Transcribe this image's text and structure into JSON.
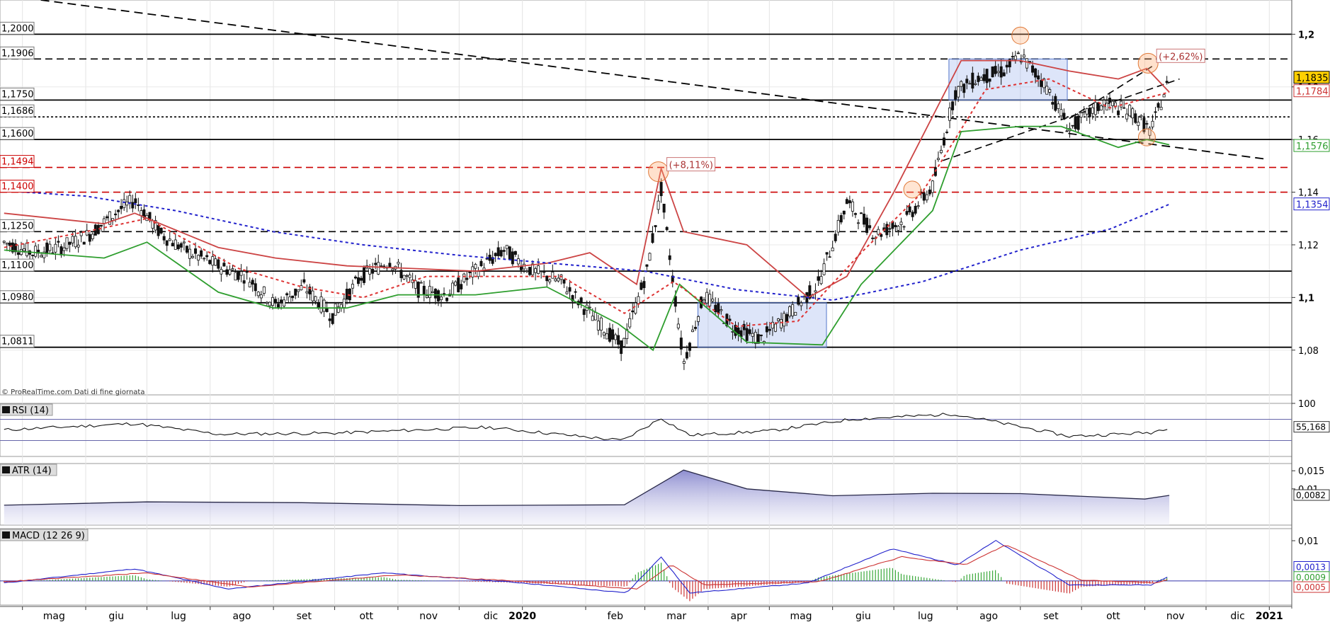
{
  "credit": "© ProRealTime.com  Dati di fine giornata",
  "chart_data": [
    {
      "type": "line",
      "panel": "price",
      "ylim": [
        1.063,
        1.213
      ],
      "grid": true,
      "right_ticks": [
        "1,2",
        "1,18",
        "1,16",
        "1,14",
        "1,12",
        "1,1",
        "1,08"
      ],
      "right_tick_values": [
        1.2,
        1.18,
        1.16,
        1.14,
        1.12,
        1.1,
        1.08
      ],
      "levels": [
        {
          "label": "1,2000",
          "value": 1.2,
          "style": "solid",
          "color": "#000000"
        },
        {
          "label": "1,1906",
          "value": 1.1906,
          "style": "dash",
          "color": "#000000"
        },
        {
          "label": "1,1750",
          "value": 1.175,
          "style": "solid",
          "color": "#000000"
        },
        {
          "label": "1,1686",
          "value": 1.1686,
          "style": "dot",
          "color": "#000000"
        },
        {
          "label": "1,1600",
          "value": 1.16,
          "style": "solid",
          "color": "#000000"
        },
        {
          "label": "1,1494",
          "value": 1.1494,
          "style": "dash",
          "color": "#cc0000"
        },
        {
          "label": "1,1400",
          "value": 1.14,
          "style": "dash",
          "color": "#cc0000"
        },
        {
          "label": "1,1250",
          "value": 1.125,
          "style": "dash",
          "color": "#000000"
        },
        {
          "label": "1,1100",
          "value": 1.11,
          "style": "solid",
          "color": "#000000"
        },
        {
          "label": "1,0980",
          "value": 1.098,
          "style": "solid",
          "color": "#000000"
        },
        {
          "label": "1,0811",
          "value": 1.0811,
          "style": "solid",
          "color": "#000000"
        }
      ],
      "price_tags": [
        {
          "label": "1,1835",
          "value": 1.1835,
          "color": "#000000",
          "bg": "#ffd000"
        },
        {
          "label": "1,1784",
          "value": 1.1784,
          "color": "#cc3333",
          "bg": "#ffffff"
        },
        {
          "label": "1,1576",
          "value": 1.1576,
          "color": "#2e9e2e",
          "bg": "#ffffff"
        },
        {
          "label": "1,1354",
          "value": 1.1354,
          "color": "#2222cc",
          "bg": "#ffffff"
        }
      ],
      "annotations": [
        {
          "text": "(+8,11%)",
          "x": "2020-03-09",
          "y": 1.1494
        },
        {
          "text": "(+2,62%)",
          "x": "2020-11-04",
          "y": 1.1906
        }
      ],
      "x_ticks": [
        "mag",
        "giu",
        "lug",
        "ago",
        "set",
        "ott",
        "nov",
        "dic",
        "2020",
        "feb",
        "mar",
        "apr",
        "mag",
        "giu",
        "lug",
        "ago",
        "set",
        "ott",
        "nov",
        "dic",
        "2021"
      ],
      "x_range": [
        "2019-04-20",
        "2021-01-12"
      ],
      "x_tick_dates": [
        "2019-05-01",
        "2019-06-01",
        "2019-07-01",
        "2019-08-01",
        "2019-09-01",
        "2019-10-01",
        "2019-11-01",
        "2019-12-01",
        "2020-01-01",
        "2020-02-01",
        "2020-03-01",
        "2020-04-01",
        "2020-05-01",
        "2020-06-01",
        "2020-07-01",
        "2020-08-01",
        "2020-09-01",
        "2020-10-01",
        "2020-11-01",
        "2020-12-01",
        "2021-01-01"
      ],
      "series": [
        {
          "color": "#111111",
          "style": "candles",
          "x": [
            "2019-04-22",
            "2019-05-06",
            "2019-05-20",
            "2019-06-03",
            "2019-06-17",
            "2019-06-25",
            "2019-07-08",
            "2019-07-22",
            "2019-08-05",
            "2019-08-19",
            "2019-09-02",
            "2019-09-16",
            "2019-09-30",
            "2019-10-14",
            "2019-10-28",
            "2019-11-11",
            "2019-11-25",
            "2019-12-09",
            "2019-12-23",
            "2020-01-06",
            "2020-01-20",
            "2020-02-03",
            "2020-02-19",
            "2020-03-02",
            "2020-03-09",
            "2020-03-20",
            "2020-03-30",
            "2020-04-13",
            "2020-04-27",
            "2020-05-11",
            "2020-05-25",
            "2020-06-08",
            "2020-06-22",
            "2020-07-06",
            "2020-07-20",
            "2020-07-31",
            "2020-08-10",
            "2020-08-24",
            "2020-09-01",
            "2020-09-14",
            "2020-09-25",
            "2020-10-12",
            "2020-10-26",
            "2020-11-04",
            "2020-11-13"
          ],
          "values": [
            1.121,
            1.117,
            1.119,
            1.124,
            1.133,
            1.137,
            1.124,
            1.117,
            1.112,
            1.108,
            1.097,
            1.104,
            1.093,
            1.108,
            1.114,
            1.103,
            1.101,
            1.11,
            1.118,
            1.11,
            1.106,
            1.094,
            1.081,
            1.11,
            1.141,
            1.075,
            1.101,
            1.089,
            1.084,
            1.094,
            1.105,
            1.136,
            1.124,
            1.129,
            1.142,
            1.178,
            1.183,
            1.186,
            1.192,
            1.18,
            1.164,
            1.174,
            1.17,
            1.163,
            1.183
          ]
        },
        {
          "color": "#2e9e2e",
          "style": "solid",
          "x": [
            "2019-04-22",
            "2019-06-10",
            "2019-07-01",
            "2019-08-05",
            "2019-09-01",
            "2019-10-07",
            "2019-11-01",
            "2019-12-09",
            "2020-01-13",
            "2020-02-17",
            "2020-03-05",
            "2020-03-18",
            "2020-04-20",
            "2020-05-27",
            "2020-06-15",
            "2020-07-20",
            "2020-08-03",
            "2020-09-01",
            "2020-09-21",
            "2020-10-19",
            "2020-11-02",
            "2020-11-13"
          ],
          "values": [
            1.118,
            1.115,
            1.121,
            1.102,
            1.096,
            1.096,
            1.101,
            1.101,
            1.104,
            1.09,
            1.08,
            1.105,
            1.083,
            1.082,
            1.105,
            1.133,
            1.163,
            1.165,
            1.165,
            1.157,
            1.16,
            1.158
          ]
        },
        {
          "color": "#cc4444",
          "style": "solid",
          "x": [
            "2019-04-22",
            "2019-06-10",
            "2019-06-25",
            "2019-08-05",
            "2019-09-02",
            "2019-10-07",
            "2019-11-08",
            "2019-12-09",
            "2020-01-13",
            "2020-02-03",
            "2020-02-26",
            "2020-03-09",
            "2020-03-20",
            "2020-04-20",
            "2020-05-20",
            "2020-06-08",
            "2020-07-01",
            "2020-08-03",
            "2020-09-01",
            "2020-09-25",
            "2020-10-19",
            "2020-11-02",
            "2020-11-13"
          ],
          "values": [
            1.132,
            1.128,
            1.132,
            1.119,
            1.115,
            1.112,
            1.111,
            1.11,
            1.113,
            1.117,
            1.105,
            1.149,
            1.125,
            1.12,
            1.1,
            1.108,
            1.14,
            1.19,
            1.19,
            1.186,
            1.183,
            1.187,
            1.178
          ]
        },
        {
          "color": "#dd3333",
          "style": "dot",
          "x": [
            "2019-04-22",
            "2019-06-01",
            "2019-07-01",
            "2019-08-15",
            "2019-09-15",
            "2019-10-15",
            "2019-11-15",
            "2019-12-20",
            "2020-01-20",
            "2020-02-20",
            "2020-03-15",
            "2020-04-15",
            "2020-05-15",
            "2020-06-15",
            "2020-07-15",
            "2020-08-15",
            "2020-09-15",
            "2020-10-15",
            "2020-11-13"
          ],
          "values": [
            1.119,
            1.125,
            1.13,
            1.111,
            1.104,
            1.1,
            1.108,
            1.108,
            1.108,
            1.094,
            1.106,
            1.089,
            1.091,
            1.117,
            1.14,
            1.179,
            1.183,
            1.172,
            1.178
          ]
        },
        {
          "color": "#2222cc",
          "style": "dot",
          "x": [
            "2019-04-22",
            "2019-06-01",
            "2019-07-15",
            "2019-09-01",
            "2019-10-15",
            "2019-12-01",
            "2020-01-15",
            "2020-03-01",
            "2020-04-15",
            "2020-06-01",
            "2020-07-15",
            "2020-09-01",
            "2020-10-15",
            "2020-11-13"
          ],
          "values": [
            1.1405,
            1.1385,
            1.133,
            1.125,
            1.12,
            1.116,
            1.113,
            1.11,
            1.103,
            1.099,
            1.106,
            1.118,
            1.126,
            1.1354
          ]
        }
      ]
    },
    {
      "type": "line",
      "panel": "rsi",
      "title": "RSI (14)",
      "ylim": [
        0,
        100
      ],
      "right_ticks": [
        "100"
      ],
      "price_tags": [
        {
          "label": "55,168",
          "value": 55.168
        }
      ],
      "series": [
        {
          "color": "#111111",
          "x": [
            "2019-04-22",
            "2019-06-25",
            "2019-08-05",
            "2019-10-01",
            "2019-12-15",
            "2020-02-19",
            "2020-03-09",
            "2020-03-23",
            "2020-05-01",
            "2020-06-10",
            "2020-07-31",
            "2020-08-20",
            "2020-09-25",
            "2020-11-04",
            "2020-11-13"
          ],
          "values": [
            50,
            62,
            42,
            44,
            55,
            30,
            72,
            40,
            48,
            70,
            80,
            65,
            38,
            45,
            55
          ]
        }
      ]
    },
    {
      "type": "area",
      "panel": "atr",
      "title": "ATR (14)",
      "ylim": [
        0.0,
        0.017
      ],
      "right_ticks": [
        "0,015",
        "0,01"
      ],
      "price_tags": [
        {
          "label": "0,0082",
          "value": 0.0082
        }
      ],
      "series": [
        {
          "color": "#2a2a4a",
          "x": [
            "2019-04-22",
            "2019-07-01",
            "2019-09-15",
            "2019-12-01",
            "2020-02-20",
            "2020-03-20",
            "2020-04-20",
            "2020-06-01",
            "2020-07-20",
            "2020-09-01",
            "2020-11-01",
            "2020-11-13"
          ],
          "values": [
            0.0055,
            0.0064,
            0.0062,
            0.0054,
            0.0056,
            0.0152,
            0.01,
            0.0081,
            0.0088,
            0.0087,
            0.0072,
            0.0082
          ]
        }
      ]
    },
    {
      "type": "line",
      "panel": "macd",
      "title": "MACD (12 26 9)",
      "ylim": [
        -0.006,
        0.013
      ],
      "right_ticks": [
        "0,01"
      ],
      "price_tags": [
        {
          "label": "0,0013",
          "value": 0.0013,
          "color": "#2222cc"
        },
        {
          "label": "0,0009",
          "value": 0.0009,
          "color": "#2e9e2e"
        },
        {
          "label": "0,0005",
          "value": 0.0005,
          "color": "#cc3333"
        }
      ],
      "series": [
        {
          "color": "#2222cc",
          "x": [
            "2019-04-22",
            "2019-06-25",
            "2019-08-10",
            "2019-10-25",
            "2020-01-01",
            "2020-02-21",
            "2020-03-09",
            "2020-03-23",
            "2020-05-20",
            "2020-06-30",
            "2020-08-01",
            "2020-08-20",
            "2020-09-25",
            "2020-11-04",
            "2020-11-13"
          ],
          "values": [
            -0.0005,
            0.003,
            -0.002,
            0.002,
            -0.0005,
            -0.003,
            0.006,
            -0.003,
            -0.0005,
            0.008,
            0.004,
            0.01,
            -0.001,
            -0.001,
            0.0013
          ]
        },
        {
          "color": "#cc3333",
          "x": [
            "2019-04-22",
            "2019-07-01",
            "2019-08-20",
            "2019-11-01",
            "2020-01-05",
            "2020-02-26",
            "2020-03-14",
            "2020-03-30",
            "2020-05-25",
            "2020-07-05",
            "2020-08-05",
            "2020-08-25",
            "2020-10-01",
            "2020-11-06",
            "2020-11-13"
          ],
          "values": [
            -0.0002,
            0.002,
            -0.0015,
            0.0015,
            -0.0002,
            -0.002,
            0.004,
            -0.001,
            -0.0002,
            0.006,
            0.004,
            0.009,
            0.0002,
            -0.0005,
            0.0005
          ]
        }
      ]
    }
  ]
}
